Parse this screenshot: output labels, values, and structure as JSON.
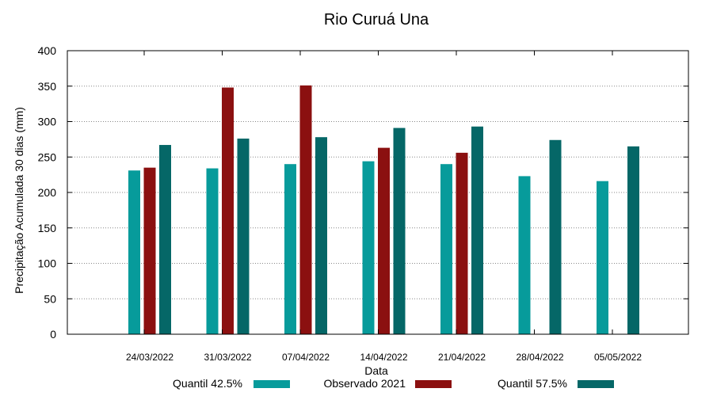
{
  "chart_data": {
    "type": "bar",
    "title": "Rio Curuá Una",
    "xlabel": "Data",
    "ylabel": "Precipitação Acumulada 30 dias (mm)",
    "ylim": [
      0,
      400
    ],
    "yticks": [
      0,
      50,
      100,
      150,
      200,
      250,
      300,
      350,
      400
    ],
    "grid": true,
    "legend_position": "bottom",
    "categories": [
      "24/03/2022",
      "31/03/2022",
      "07/04/2022",
      "14/04/2022",
      "21/04/2022",
      "28/04/2022",
      "05/05/2022"
    ],
    "series": [
      {
        "name": "Quantil 42.5%",
        "color": "#079b9b",
        "values": [
          231,
          234,
          240,
          244,
          240,
          223,
          216
        ]
      },
      {
        "name": "Observado 2021",
        "color": "#8b1010",
        "values": [
          235,
          348,
          351,
          263,
          256,
          null,
          null
        ]
      },
      {
        "name": "Quantil 57.5%",
        "color": "#056767",
        "values": [
          267,
          276,
          278,
          291,
          293,
          274,
          265
        ]
      }
    ]
  }
}
